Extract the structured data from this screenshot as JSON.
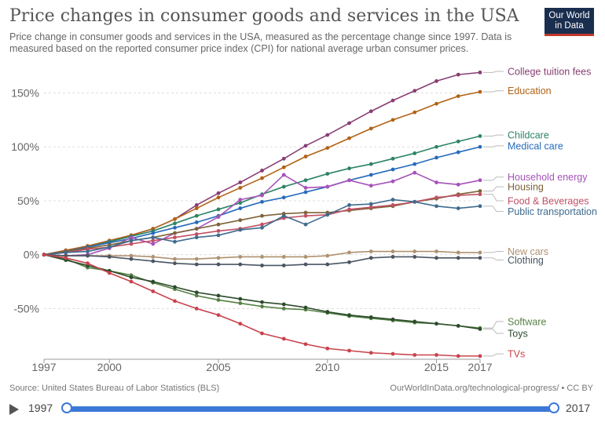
{
  "title": "Price changes in consumer goods and services in the USA",
  "subtitle": "Price change in consumer goods and services in the USA, measured as the percentage change since 1997. Data is measured based on the reported consumer price index (CPI) for national average urban consumer prices.",
  "logo": {
    "line1": "Our World",
    "line2": "in Data"
  },
  "footer": {
    "source": "Source: United States Bureau of Labor Statistics (BLS)",
    "credit": "OurWorldInData.org/technological-progress/ • CC BY"
  },
  "timeline": {
    "start": "1997",
    "end": "2017"
  },
  "chart_data": {
    "type": "line",
    "x_ticks": [
      1997,
      2000,
      2005,
      2010,
      2015,
      2017
    ],
    "y_ticks": [
      -50,
      0,
      50,
      100,
      150
    ],
    "y_tick_labels": [
      "-50%",
      "0%",
      "50%",
      "100%",
      "150%"
    ],
    "xlim": [
      1997,
      2017
    ],
    "ylim": [
      -97,
      178
    ],
    "x": [
      1997,
      1998,
      1999,
      2000,
      2001,
      2002,
      2003,
      2004,
      2005,
      2006,
      2007,
      2008,
      2009,
      2010,
      2011,
      2012,
      2013,
      2014,
      2015,
      2016,
      2017
    ],
    "series": [
      {
        "name": "College tuition fees",
        "color": "#883e73",
        "values": [
          0,
          4,
          8,
          13,
          18,
          24,
          33,
          46,
          57,
          67,
          78,
          89,
          101,
          111,
          122,
          133,
          143,
          152,
          161,
          167,
          169
        ]
      },
      {
        "name": "Education",
        "color": "#b16214",
        "values": [
          0,
          4,
          8,
          13,
          18,
          24,
          33,
          43,
          53,
          62,
          71,
          81,
          91,
          99,
          108,
          117,
          125,
          132,
          140,
          147,
          151
        ]
      },
      {
        "name": "Childcare",
        "color": "#2c8465",
        "values": [
          0,
          3,
          7,
          12,
          17,
          22,
          29,
          36,
          42,
          48,
          56,
          63,
          69,
          75,
          80,
          84,
          89,
          94,
          100,
          105,
          110
        ]
      },
      {
        "name": "Medical care",
        "color": "#286bbb",
        "values": [
          0,
          3,
          7,
          11,
          15,
          20,
          25,
          30,
          36,
          43,
          49,
          53,
          58,
          63,
          69,
          74,
          79,
          84,
          90,
          95,
          100
        ]
      },
      {
        "name": "Household energy",
        "color": "#a652ba",
        "values": [
          0,
          -1,
          0,
          6,
          16,
          10,
          20,
          24,
          35,
          51,
          55,
          74,
          62,
          63,
          69,
          64,
          68,
          76,
          67,
          65,
          69
        ]
      },
      {
        "name": "Housing",
        "color": "#7d6339",
        "values": [
          0,
          3,
          6,
          9,
          13,
          16,
          20,
          24,
          28,
          32,
          36,
          38,
          39,
          39,
          41,
          43,
          45,
          49,
          52,
          56,
          59
        ]
      },
      {
        "name": "Food & Beverages",
        "color": "#c15065",
        "values": [
          0,
          2,
          5,
          7,
          10,
          13,
          16,
          19,
          22,
          24,
          28,
          34,
          36,
          37,
          42,
          44,
          46,
          49,
          53,
          55,
          56
        ]
      },
      {
        "name": "Public transportation",
        "color": "#3f6b8f",
        "values": [
          0,
          2,
          3,
          7,
          13,
          16,
          12,
          16,
          18,
          23,
          25,
          36,
          28,
          37,
          46,
          47,
          51,
          49,
          45,
          43,
          45
        ]
      },
      {
        "name": "New cars",
        "color": "#ae9270",
        "values": [
          0,
          -1,
          -1,
          -1,
          -1,
          -2,
          -4,
          -4,
          -3,
          -2,
          -2,
          -2,
          -2,
          -1,
          2,
          3,
          3,
          3,
          3,
          2,
          2
        ]
      },
      {
        "name": "Clothing",
        "color": "#4a5563",
        "values": [
          0,
          -1,
          -1,
          -2,
          -4,
          -6,
          -8,
          -9,
          -9,
          -9,
          -10,
          -10,
          -9,
          -9,
          -7,
          -3,
          -2,
          -2,
          -3,
          -3,
          -3
        ]
      },
      {
        "name": "Software",
        "color": "#578145",
        "values": [
          0,
          -4,
          -12,
          -15,
          -19,
          -26,
          -32,
          -38,
          -42,
          -45,
          -48,
          -50,
          -51,
          -54,
          -57,
          -59,
          -61,
          -63,
          -64,
          -66,
          -68
        ]
      },
      {
        "name": "Toys",
        "color": "#2c4b2c",
        "values": [
          0,
          -5,
          -10,
          -15,
          -21,
          -25,
          -30,
          -35,
          -38,
          -41,
          -44,
          -46,
          -49,
          -53,
          -56,
          -58,
          -60,
          -62,
          -64,
          -66,
          -69
        ]
      },
      {
        "name": "TVs",
        "color": "#c9434c",
        "values": [
          0,
          -3,
          -8,
          -17,
          -25,
          -34,
          -43,
          -50,
          -56,
          -64,
          -73,
          -78,
          -83,
          -87,
          -89,
          -91,
          -92,
          -93,
          -93,
          -94,
          -94
        ]
      }
    ],
    "label_y": [
      170,
      152,
      111,
      101,
      72,
      63,
      50,
      40,
      3,
      -5,
      -62,
      -73,
      -92
    ]
  }
}
